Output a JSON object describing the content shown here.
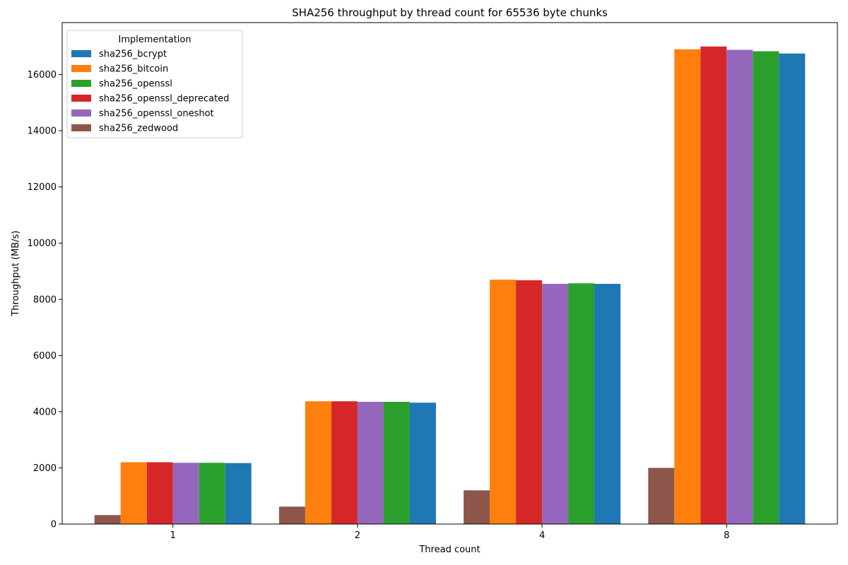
{
  "chart_data": {
    "type": "bar",
    "title": "SHA256 throughput by thread count for 65536 byte chunks",
    "xlabel": "Thread count",
    "ylabel": "Throughput (MB/s)",
    "categories": [
      "1",
      "2",
      "4",
      "8"
    ],
    "ylim": [
      0,
      17850
    ],
    "yticks": [
      0,
      2000,
      4000,
      6000,
      8000,
      10000,
      12000,
      14000,
      16000
    ],
    "grid": false,
    "legend": {
      "title": "Implementation",
      "placement": "top-left"
    },
    "legend_order": [
      "sha256_bcrypt",
      "sha256_bitcoin",
      "sha256_openssl",
      "sha256_openssl_deprecated",
      "sha256_openssl_oneshot",
      "sha256_zedwood"
    ],
    "bar_order": [
      "sha256_zedwood",
      "sha256_bitcoin",
      "sha256_openssl_deprecated",
      "sha256_openssl_oneshot",
      "sha256_openssl",
      "sha256_bcrypt"
    ],
    "series": [
      {
        "name": "sha256_bcrypt",
        "color": "#1f77b4",
        "values": [
          2170,
          4320,
          8550,
          16750
        ]
      },
      {
        "name": "sha256_bitcoin",
        "color": "#ff7f0e",
        "values": [
          2200,
          4370,
          8700,
          16900
        ]
      },
      {
        "name": "sha256_openssl",
        "color": "#2ca02c",
        "values": [
          2180,
          4350,
          8570,
          16830
        ]
      },
      {
        "name": "sha256_openssl_deprecated",
        "color": "#d62728",
        "values": [
          2200,
          4370,
          8680,
          17000
        ]
      },
      {
        "name": "sha256_openssl_oneshot",
        "color": "#9467bd",
        "values": [
          2180,
          4350,
          8550,
          16880
        ]
      },
      {
        "name": "sha256_zedwood",
        "color": "#8c564b",
        "values": [
          320,
          620,
          1200,
          2000
        ]
      }
    ]
  }
}
